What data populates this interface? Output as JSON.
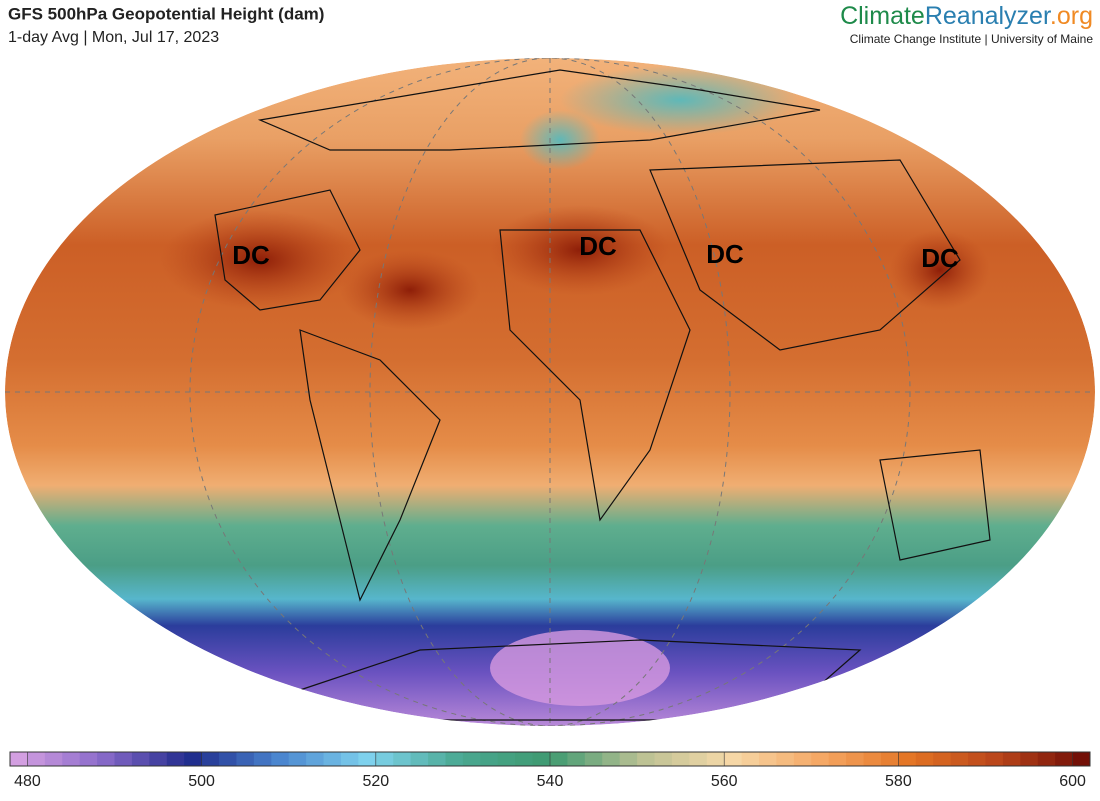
{
  "header": {
    "title": "GFS 500hPa Geopotential Height (dam)",
    "subtitle": "1-day Avg | Mon, Jul 17, 2023"
  },
  "brand": {
    "parts": [
      "Climate",
      "Reanalyzer",
      ".org"
    ],
    "tagline": "Climate Change Institute | University of Maine"
  },
  "map": {
    "labels": [
      "DC",
      "DC",
      "DC",
      "DC"
    ]
  },
  "colorbar": {
    "range": [
      478,
      602
    ],
    "step": 2,
    "ticks": [
      480,
      500,
      520,
      540,
      560,
      580,
      600
    ],
    "colors": [
      "#dba4e3",
      "#8c6ccb",
      "#1f2b8c",
      "#4b86cf",
      "#80d3ee",
      "#4aa891",
      "#3f9a71",
      "#b9c093",
      "#f6d9a8",
      "#f5a865",
      "#e37424",
      "#b8441a",
      "#6c0a05"
    ]
  }
}
